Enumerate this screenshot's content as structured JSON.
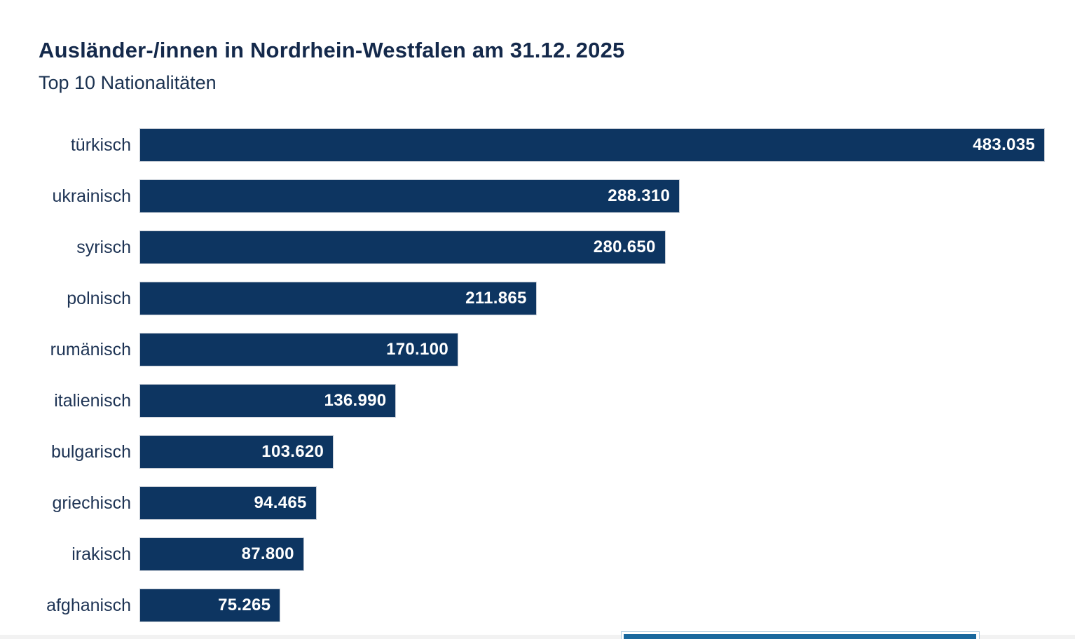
{
  "header": {
    "title": "Ausländer-/innen in Nordrhein-Westfalen am 31.12. 2025",
    "subtitle": "Top 10 Nationalitäten"
  },
  "chart_data": {
    "type": "bar",
    "orientation": "horizontal",
    "title": "Ausländer-/innen in Nordrhein-Westfalen am 31.12. 2025",
    "subtitle": "Top 10 Nationalitäten",
    "categories": [
      "türkisch",
      "ukrainisch",
      "syrisch",
      "polnisch",
      "rumänisch",
      "italienisch",
      "bulgarisch",
      "griechisch",
      "irakisch",
      "afghanisch"
    ],
    "values": [
      483035,
      288310,
      280650,
      211865,
      170100,
      136990,
      103620,
      94465,
      87800,
      75265
    ],
    "value_labels": [
      "483.035",
      "288.310",
      "280.650",
      "211.865",
      "170.100",
      "136.990",
      "103.620",
      "94.465",
      "87.800",
      "75.265"
    ],
    "xlim": [
      0,
      483035
    ],
    "xlabel": "",
    "ylabel": "",
    "grid": false,
    "legend": false,
    "value_labels_position": "inside-end",
    "bar_color": "#0d3561",
    "bar_border_color": "#c7cdd6",
    "value_label_color": "#ffffff",
    "category_label_color": "#1d3354",
    "title_color": "#14294b"
  },
  "footer_scrollbar": {
    "thumb_color": "#19689e",
    "track_color": "#f2f2f2",
    "thumb_border_color": "#afcbe1"
  }
}
